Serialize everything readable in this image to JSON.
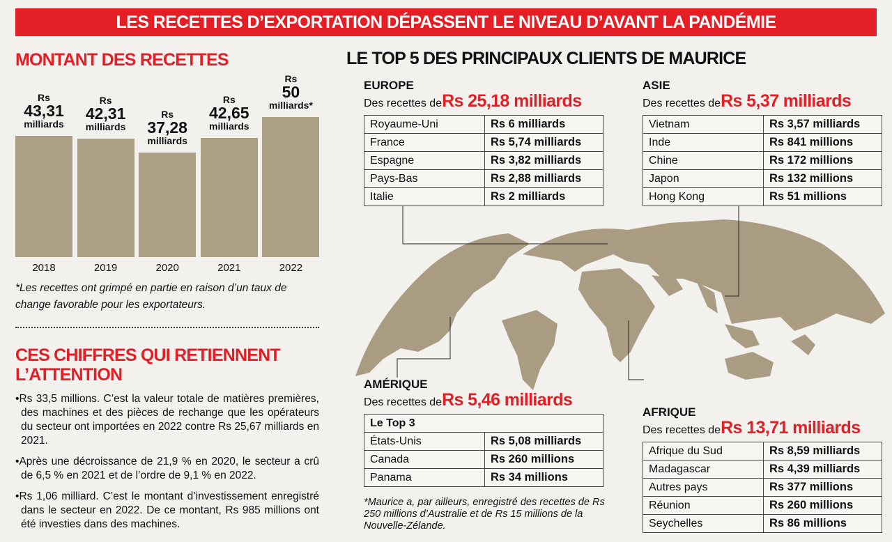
{
  "header": {
    "title": "LES RECETTES D’EXPORTATION DÉPASSENT LE NIVEAU D’AVANT LA PANDÉMIE"
  },
  "chart_data": {
    "type": "bar",
    "title": "MONTANT DES RECETTES",
    "categories": [
      "2018",
      "2019",
      "2020",
      "2021",
      "2022"
    ],
    "values": [
      43.31,
      42.31,
      37.28,
      42.65,
      50
    ],
    "value_labels": [
      "Rs 43,31 milliards",
      "Rs 42,31 milliards",
      "Rs 37,28 milliards",
      "Rs 42,65 milliards",
      "Rs 50 milliards*"
    ],
    "color": "#aca084",
    "note": "*Les recettes ont grimpé en partie en raison d’un taux de change favorable pour les exportateurs."
  },
  "highlights": {
    "title": "CES CHIFFRES QUI RETIENNENT L’ATTENTION",
    "items": [
      "Rs 33,5 millions. C’est la valeur totale de matières premières, des machines et des pièces de rechange que les opérateurs du secteur ont importées en 2022 contre Rs 25,67 milliards en 2021.",
      "Après une décroissance de 21,9 % en 2020, le secteur a crû de 6,5 % en 2021 et de l’ordre de 9,1 % en 2022.",
      "Rs 1,06 milliard. C’est le montant d’investissement enregistré dans le secteur en 2022. De ce montant, Rs 985 millions ont été investies dans des machines."
    ]
  },
  "clients": {
    "title": "LE TOP 5 DES PRINCIPAUX CLIENTS DE MAURICE",
    "caption": "Des recettes de",
    "regions": [
      {
        "name": "EUROPE",
        "amount": "Rs 25,18 milliards",
        "rows": [
          [
            "Royaume-Uni",
            "Rs 6 milliards"
          ],
          [
            "France",
            "Rs 5,74 milliards"
          ],
          [
            "Espagne",
            "Rs 3,82 milliards"
          ],
          [
            "Pays-Bas",
            "Rs 2,88 milliards"
          ],
          [
            "Italie",
            "Rs 2 milliards"
          ]
        ]
      },
      {
        "name": "ASIE",
        "amount": "Rs 5,37 milliards",
        "rows": [
          [
            "Vietnam",
            "Rs 3,57 milliards"
          ],
          [
            "Inde",
            "Rs 841 millions"
          ],
          [
            "Chine",
            "Rs 172 millions"
          ],
          [
            "Japon",
            "Rs 132 millions"
          ],
          [
            "Hong Kong",
            "Rs 51 millions"
          ]
        ]
      },
      {
        "name": "AMÉRIQUE",
        "amount": "Rs 5,46 milliards",
        "subtitle": "Le Top 3",
        "rows": [
          [
            "États-Unis",
            "Rs 5,08 milliards"
          ],
          [
            "Canada",
            "Rs 260 millions"
          ],
          [
            "Panama",
            "Rs 34 millions"
          ]
        ]
      },
      {
        "name": "AFRIQUE",
        "amount": "Rs 13,71 milliards",
        "rows": [
          [
            "Afrique du Sud",
            "Rs 8,59 milliards"
          ],
          [
            "Madagascar",
            "Rs 4,39 milliards"
          ],
          [
            "Autres pays",
            "Rs 377 millions"
          ],
          [
            "Réunion",
            "Rs 260 millions"
          ],
          [
            "Seychelles",
            "Rs 86 millions"
          ]
        ]
      }
    ],
    "footnote": "*Maurice a, par ailleurs, enregistré des recettes de Rs 250 millions d’Australie et de Rs 15 millions de la Nouvelle-Zélande."
  }
}
